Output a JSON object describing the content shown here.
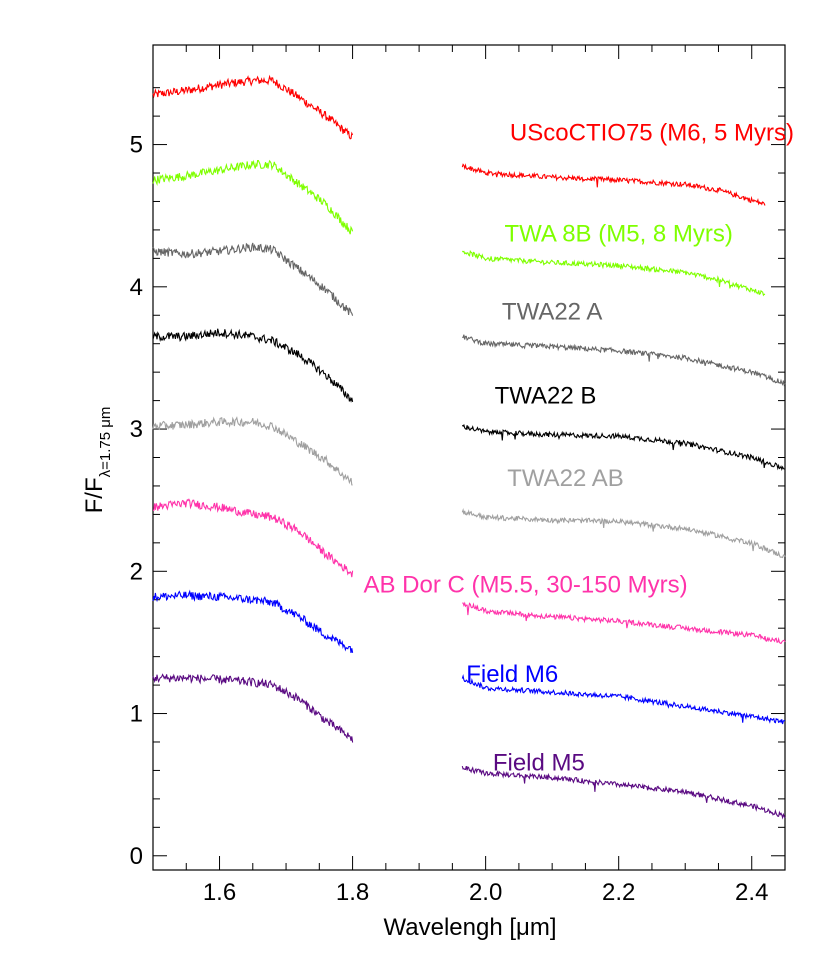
{
  "chart_data": {
    "type": "line",
    "xlabel": "Wavelengh [μm]",
    "ylabel": {
      "main": "F/F",
      "subscript": "λ=1.75 μm"
    },
    "xlim": [
      1.5,
      2.45
    ],
    "ylim": [
      -0.1,
      5.7
    ],
    "xticks": [
      "1.6",
      "1.8",
      "2.0",
      "2.2",
      "2.4"
    ],
    "xtick_values": [
      1.6,
      1.8,
      2.0,
      2.2,
      2.4
    ],
    "yticks": [
      "0",
      "1",
      "2",
      "3",
      "4",
      "5"
    ],
    "ytick_values": [
      0,
      1,
      2,
      3,
      4,
      5
    ],
    "grid": false,
    "bands": [
      [
        1.5,
        1.8
      ],
      [
        1.965,
        2.45
      ]
    ],
    "series": [
      {
        "name": "UScoCTIO75 (M6, 5 Myrs)",
        "color": "#ff0000",
        "label_x": 2.25,
        "label_y": 5.03,
        "h": [
          [
            1.5,
            5.35
          ],
          [
            1.55,
            5.38
          ],
          [
            1.6,
            5.42
          ],
          [
            1.65,
            5.45
          ],
          [
            1.68,
            5.45
          ],
          [
            1.72,
            5.33
          ],
          [
            1.76,
            5.2
          ],
          [
            1.8,
            5.05
          ]
        ],
        "k": [
          [
            1.965,
            4.85
          ],
          [
            2.0,
            4.8
          ],
          [
            2.1,
            4.77
          ],
          [
            2.2,
            4.75
          ],
          [
            2.3,
            4.72
          ],
          [
            2.35,
            4.68
          ],
          [
            2.42,
            4.58
          ]
        ]
      },
      {
        "name": "TWA 8B (M5, 8 Myrs)",
        "color": "#7fff00",
        "label_x": 2.2,
        "label_y": 4.32,
        "h": [
          [
            1.5,
            4.75
          ],
          [
            1.55,
            4.78
          ],
          [
            1.6,
            4.82
          ],
          [
            1.65,
            4.86
          ],
          [
            1.68,
            4.86
          ],
          [
            1.72,
            4.72
          ],
          [
            1.76,
            4.58
          ],
          [
            1.8,
            4.38
          ]
        ],
        "k": [
          [
            1.965,
            4.25
          ],
          [
            2.0,
            4.2
          ],
          [
            2.1,
            4.17
          ],
          [
            2.2,
            4.15
          ],
          [
            2.3,
            4.1
          ],
          [
            2.35,
            4.05
          ],
          [
            2.42,
            3.95
          ]
        ]
      },
      {
        "name": "TWA22 A",
        "color": "#666666",
        "label_x": 2.1,
        "label_y": 3.77,
        "h": [
          [
            1.5,
            4.25
          ],
          [
            1.55,
            4.23
          ],
          [
            1.6,
            4.25
          ],
          [
            1.65,
            4.28
          ],
          [
            1.68,
            4.26
          ],
          [
            1.72,
            4.12
          ],
          [
            1.76,
            3.98
          ],
          [
            1.8,
            3.8
          ]
        ],
        "k": [
          [
            1.965,
            3.65
          ],
          [
            2.0,
            3.6
          ],
          [
            2.1,
            3.58
          ],
          [
            2.2,
            3.55
          ],
          [
            2.3,
            3.5
          ],
          [
            2.4,
            3.4
          ],
          [
            2.45,
            3.32
          ]
        ]
      },
      {
        "name": "TWA22 B",
        "color": "#000000",
        "label_x": 2.09,
        "label_y": 3.18,
        "h": [
          [
            1.5,
            3.65
          ],
          [
            1.55,
            3.65
          ],
          [
            1.6,
            3.68
          ],
          [
            1.65,
            3.65
          ],
          [
            1.68,
            3.62
          ],
          [
            1.72,
            3.52
          ],
          [
            1.76,
            3.38
          ],
          [
            1.8,
            3.2
          ]
        ],
        "k": [
          [
            1.965,
            3.02
          ],
          [
            2.0,
            2.98
          ],
          [
            2.1,
            2.96
          ],
          [
            2.2,
            2.95
          ],
          [
            2.3,
            2.9
          ],
          [
            2.4,
            2.8
          ],
          [
            2.45,
            2.72
          ]
        ]
      },
      {
        "name": "TWA22 AB",
        "color": "#a0a0a0",
        "label_x": 2.12,
        "label_y": 2.6,
        "h": [
          [
            1.5,
            3.02
          ],
          [
            1.55,
            3.03
          ],
          [
            1.6,
            3.05
          ],
          [
            1.65,
            3.05
          ],
          [
            1.68,
            3.02
          ],
          [
            1.72,
            2.9
          ],
          [
            1.76,
            2.78
          ],
          [
            1.8,
            2.62
          ]
        ],
        "k": [
          [
            1.965,
            2.42
          ],
          [
            2.0,
            2.38
          ],
          [
            2.1,
            2.36
          ],
          [
            2.2,
            2.35
          ],
          [
            2.3,
            2.3
          ],
          [
            2.4,
            2.2
          ],
          [
            2.45,
            2.1
          ]
        ]
      },
      {
        "name": "AB Dor C  (M5.5, 30-150 Myrs)",
        "color": "#ff33aa",
        "label_x": 2.06,
        "label_y": 1.85,
        "h": [
          [
            1.5,
            2.45
          ],
          [
            1.55,
            2.48
          ],
          [
            1.6,
            2.45
          ],
          [
            1.65,
            2.4
          ],
          [
            1.68,
            2.38
          ],
          [
            1.72,
            2.28
          ],
          [
            1.76,
            2.12
          ],
          [
            1.8,
            1.98
          ]
        ],
        "k": [
          [
            1.965,
            1.78
          ],
          [
            2.0,
            1.72
          ],
          [
            2.1,
            1.68
          ],
          [
            2.2,
            1.65
          ],
          [
            2.3,
            1.6
          ],
          [
            2.4,
            1.55
          ],
          [
            2.45,
            1.5
          ]
        ]
      },
      {
        "name": "Field M6",
        "color": "#0000ff",
        "label_x": 2.04,
        "label_y": 1.22,
        "h": [
          [
            1.5,
            1.82
          ],
          [
            1.55,
            1.83
          ],
          [
            1.6,
            1.82
          ],
          [
            1.65,
            1.8
          ],
          [
            1.68,
            1.78
          ],
          [
            1.72,
            1.68
          ],
          [
            1.76,
            1.55
          ],
          [
            1.8,
            1.45
          ]
        ],
        "k": [
          [
            1.965,
            1.25
          ],
          [
            2.0,
            1.18
          ],
          [
            2.1,
            1.15
          ],
          [
            2.2,
            1.12
          ],
          [
            2.3,
            1.05
          ],
          [
            2.4,
            0.98
          ],
          [
            2.45,
            0.94
          ]
        ]
      },
      {
        "name": "Field M5",
        "color": "#5a0a82",
        "label_x": 2.08,
        "label_y": 0.6,
        "h": [
          [
            1.5,
            1.25
          ],
          [
            1.55,
            1.25
          ],
          [
            1.6,
            1.24
          ],
          [
            1.65,
            1.22
          ],
          [
            1.68,
            1.2
          ],
          [
            1.72,
            1.1
          ],
          [
            1.76,
            0.95
          ],
          [
            1.8,
            0.82
          ]
        ],
        "k": [
          [
            1.965,
            0.62
          ],
          [
            2.0,
            0.58
          ],
          [
            2.1,
            0.55
          ],
          [
            2.2,
            0.5
          ],
          [
            2.3,
            0.45
          ],
          [
            2.4,
            0.35
          ],
          [
            2.45,
            0.28
          ]
        ]
      }
    ]
  }
}
